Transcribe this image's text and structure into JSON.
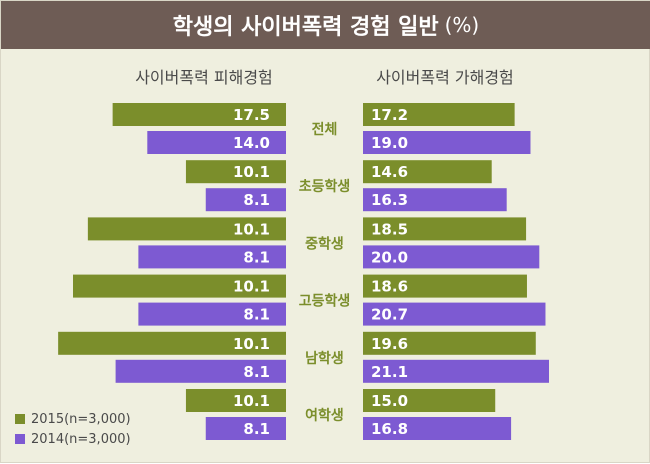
{
  "header": {
    "title": "학생의 사이버폭력 경험 일반",
    "unit": "(%)"
  },
  "chart_data": {
    "type": "bar",
    "orientation": "horizontal-butterfly",
    "title": "학생의 사이버폭력 경험 일반 (%)",
    "left_title": "사이버폭력 피해경험",
    "right_title": "사이버폭력 가해경험",
    "categories": [
      "전체",
      "초등학생",
      "중학생",
      "고등학생",
      "남학생",
      "여학생"
    ],
    "series": [
      {
        "name": "2015(n=3,000)",
        "color": "#7b8e2b",
        "left_values": [
          17.5,
          10.1,
          10.1,
          10.1,
          10.1,
          10.1
        ],
        "right_values": [
          17.2,
          14.6,
          18.5,
          18.6,
          19.6,
          15.0
        ]
      },
      {
        "name": "2014(n=3,000)",
        "color": "#7d5ad2",
        "left_values": [
          14.0,
          8.1,
          8.1,
          8.1,
          8.1,
          8.1
        ],
        "right_values": [
          19.0,
          16.3,
          20.0,
          20.7,
          21.1,
          16.8
        ]
      }
    ],
    "left_bar_extents": [
      17.5,
      14.0,
      10.1,
      8.1,
      20.0,
      14.9,
      21.5,
      14.9,
      23.0,
      17.2,
      10.1,
      8.1
    ],
    "xlim": [
      0,
      21.5
    ],
    "legend_position": "bottom-left"
  },
  "colors": {
    "header_bg": "#6e5c55",
    "background": "#efefdf",
    "category_text": "#7b8e2b",
    "title_text": "#4a4a4a"
  }
}
